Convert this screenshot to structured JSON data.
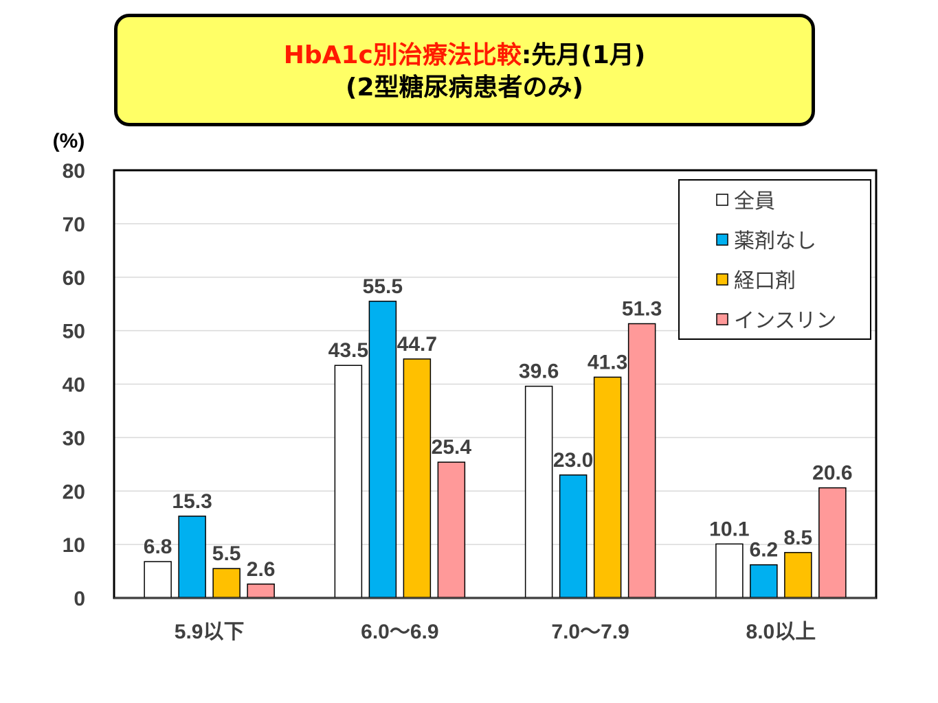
{
  "title": {
    "part_red": "HbA1c別治療法比較",
    "part_black": ":先月(1月)",
    "line2": "(2型糖尿病患者のみ)"
  },
  "chart_data": {
    "type": "bar",
    "ylabel": "(%)",
    "ylim": [
      0,
      80
    ],
    "yticks": [
      0,
      10,
      20,
      30,
      40,
      50,
      60,
      70,
      80
    ],
    "grid": true,
    "legend_position": "top-right",
    "categories": [
      "5.9以下",
      "6.0～6.9",
      "7.0～7.9",
      "8.0以上"
    ],
    "series": [
      {
        "name": "全員",
        "color": "#ffffff",
        "values": [
          6.8,
          43.5,
          39.6,
          10.1
        ],
        "labels": [
          "6.8",
          "43.5",
          "39.6",
          "10.1"
        ]
      },
      {
        "name": "薬剤なし",
        "color": "#00b0f0",
        "values": [
          15.3,
          55.5,
          23.0,
          6.2
        ],
        "labels": [
          "15.3",
          "55.5",
          "23.0",
          "6.2"
        ]
      },
      {
        "name": "経口剤",
        "color": "#ffc000",
        "values": [
          5.5,
          44.7,
          41.3,
          8.5
        ],
        "labels": [
          "5.5",
          "44.7",
          "41.3",
          "8.5"
        ]
      },
      {
        "name": "インスリン",
        "color": "#ff9999",
        "values": [
          2.6,
          25.4,
          51.3,
          20.6
        ],
        "labels": [
          "2.6",
          "25.4",
          "51.3",
          "20.6"
        ]
      }
    ]
  }
}
